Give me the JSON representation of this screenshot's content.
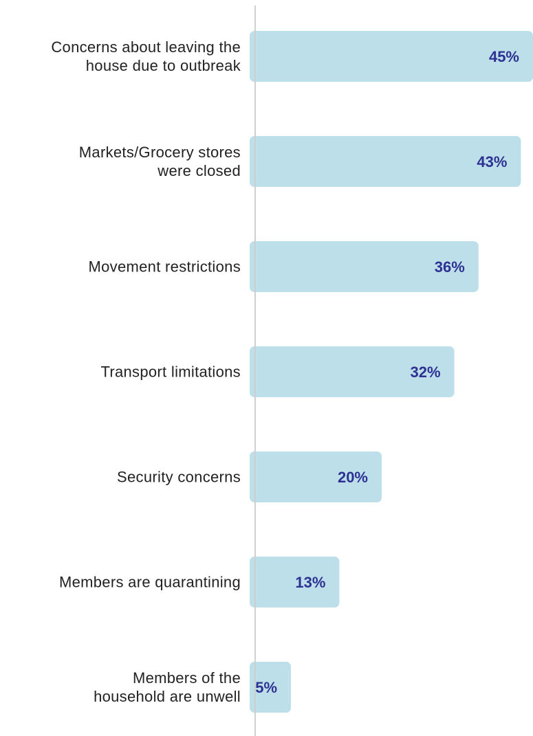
{
  "chart_data": {
    "type": "barh",
    "categories": [
      "Concerns about leaving the\nhouse due to outbreak",
      "Markets/Grocery stores\nwere closed",
      "Movement restrictions",
      "Transport limitations",
      "Security concerns",
      "Members are quarantining",
      "Members of the\nhousehold are unwell"
    ],
    "values": [
      45,
      43,
      36,
      32,
      20,
      13,
      5
    ],
    "value_labels": [
      "45%",
      "43%",
      "36%",
      "32%",
      "20%",
      "13%",
      "5%"
    ],
    "color": "#bcdfea",
    "label_color": "#2e3192"
  }
}
